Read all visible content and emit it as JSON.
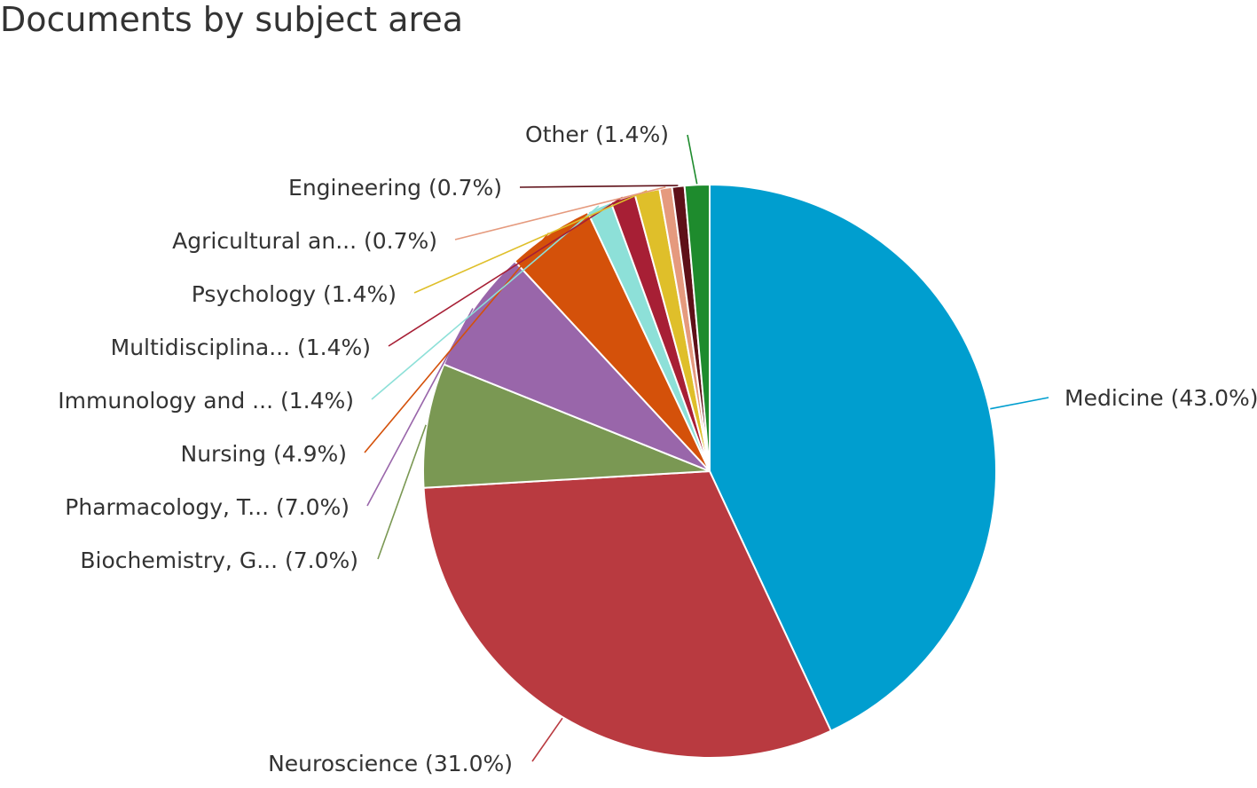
{
  "chart_data": {
    "type": "pie",
    "title": "Documents by subject area",
    "slices": [
      {
        "label": "Medicine (43.0%)",
        "value": 43.0,
        "color": "#009ecf"
      },
      {
        "label": "Neuroscience (31.0%)",
        "value": 31.0,
        "color": "#b93a40"
      },
      {
        "label": "Biochemistry, G... (7.0%)",
        "value": 7.0,
        "color": "#7a9853"
      },
      {
        "label": "Pharmacology, T... (7.0%)",
        "value": 7.0,
        "color": "#9966aa"
      },
      {
        "label": "Nursing (4.9%)",
        "value": 4.9,
        "color": "#d4510a"
      },
      {
        "label": "Immunology and ... (1.4%)",
        "value": 1.4,
        "color": "#8de0d8"
      },
      {
        "label": "Multidisciplina... (1.4%)",
        "value": 1.4,
        "color": "#a71f35"
      },
      {
        "label": "Psychology (1.4%)",
        "value": 1.4,
        "color": "#dfbf2a"
      },
      {
        "label": "Agricultural an... (0.7%)",
        "value": 0.7,
        "color": "#e59a7e"
      },
      {
        "label": "Engineering (0.7%)",
        "value": 0.7,
        "color": "#5e1018"
      },
      {
        "label": "Other (1.4%)",
        "value": 1.4,
        "color": "#1e8b2d"
      }
    ]
  }
}
